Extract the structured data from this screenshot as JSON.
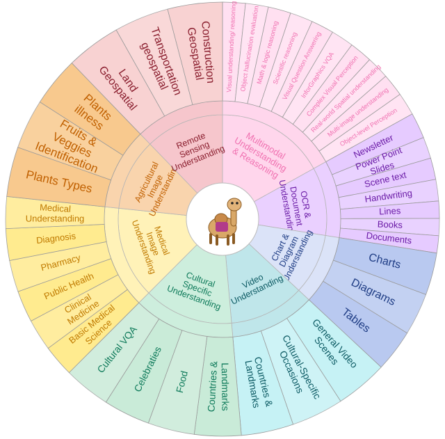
{
  "mascot": "camel",
  "categories": [
    {
      "name": "Multimodal Understanding & Reasoning",
      "lines": [
        "Multimodal",
        "Understanding",
        "& Reasoning"
      ],
      "inner": "#ffd6ec",
      "outer": "#ffe0f1",
      "text": "#f070b0",
      "items": [
        "Visual understanding/ reasoning",
        "Object hallucination evaluation",
        "Math & logic reasoning",
        "Scientific reasoning",
        "Visual Question Answering",
        "InforGraphics VQA",
        "Complex Visual Perception",
        "Real-world Spatial understanding",
        "Multi-image understanding",
        "Object-level Perception"
      ]
    },
    {
      "name": "OCR & Document Understanding",
      "lines": [
        "OCR &",
        "Document",
        "Understanding"
      ],
      "inner": "#ead0ff",
      "outer": "#e6cbff",
      "text": "#6a1aa6",
      "items": [
        "Newsletter",
        "Power Point Slides",
        "Scene text",
        "Handwriting",
        "Lines",
        "Books",
        "Documents"
      ]
    },
    {
      "name": "Chart & Diagram Understanding",
      "lines": [
        "Chart &",
        "Diagram",
        "Understanding"
      ],
      "inner": "#dbe3f8",
      "outer": "#b9c9f0",
      "text": "#1f3d85",
      "items": [
        "Charts",
        "Diagrams",
        "Tables"
      ]
    },
    {
      "name": "Video Understanding",
      "lines": [
        "Video",
        "Understanding"
      ],
      "inner": "#bfe6ea",
      "outer": "#c6f2f5",
      "text": "#0c5a63",
      "items": [
        "General Video Scenes",
        "Cultural-Specific Occasions",
        "Countries & Landmarks"
      ]
    },
    {
      "name": "Cultural Specific Understanding",
      "lines": [
        "Cultural",
        "Specific",
        "Understanding"
      ],
      "inner": "#cdeedd",
      "outer": "#c9ebd8",
      "text": "#0e7a5a",
      "items": [
        "Countries & Landmarks",
        "Food",
        "Celebraties",
        "Cultural VQA"
      ]
    },
    {
      "name": "Medical Image Understanding",
      "lines": [
        "Medical",
        "Image",
        "Understanding"
      ],
      "inner": "#fff2b8",
      "outer": "#ffeb8f",
      "text": "#c07a00",
      "items": [
        "Basic Medical Science",
        "Clinical Medicine",
        "Public Health",
        "Pharmacy",
        "Diagnosis",
        "Medical Understanding"
      ]
    },
    {
      "name": "Agricultural Image Understanding",
      "lines": [
        "Agricultural",
        "Image",
        "Understanding"
      ],
      "inner": "#f9d4ad",
      "outer": "#f8c98e",
      "text": "#c06000",
      "items": [
        "Plants Types",
        "Fruits & Veggies Identification",
        "Plants illness"
      ]
    },
    {
      "name": "Remote Sensing Understanding",
      "lines": [
        "Remote",
        "Sensing",
        "Understanding"
      ],
      "inner": "#f6c6cc",
      "outer": "#f8d2d2",
      "text": "#8a1e2e",
      "items": [
        "Land Geospatial",
        "Transportation geospatial",
        "Construction Geospatial"
      ]
    }
  ]
}
